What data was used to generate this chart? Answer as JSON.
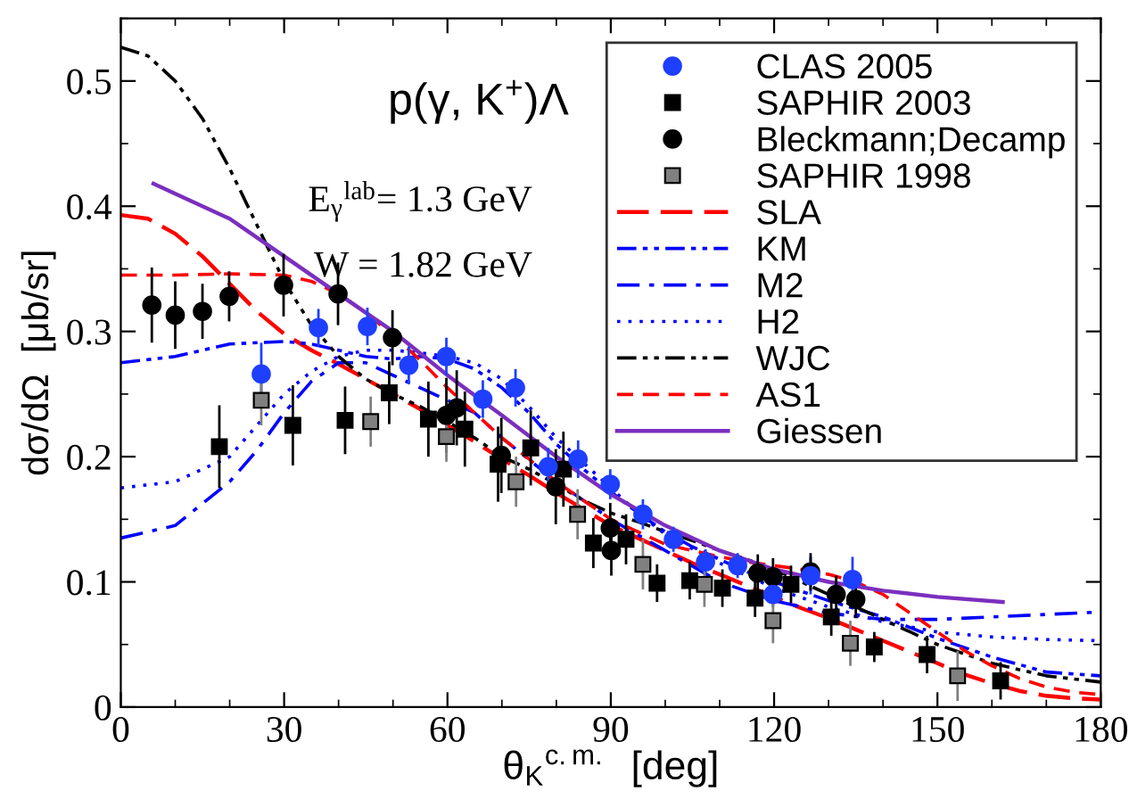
{
  "chart_data": {
    "type": "scatter",
    "title": "p(γ, K$^{+}$)Λ",
    "xlabel": "θ$_{K}$$^{c.m.}$  [deg]",
    "ylabel": "dσ/dΩ  [μb/sr]",
    "annotations": [
      "E$_{γ}$$^{lab}$= 1.3 GeV",
      "W = 1.82 GeV"
    ],
    "xlim": [
      0,
      180
    ],
    "ylim": [
      0,
      0.55
    ],
    "xticks": [
      0,
      30,
      60,
      90,
      120,
      150,
      180
    ],
    "yticks": [
      0,
      0.1,
      0.2,
      0.3,
      0.4,
      0.5
    ],
    "grid": false,
    "legend": "top right",
    "series": [
      {
        "name": "CLAS 2005",
        "marker": "circle",
        "color": "#1f3fff",
        "x": [
          25.8,
          36.3,
          45.3,
          52.9,
          59.8,
          66.5,
          72.5,
          78.5,
          84,
          89.9,
          95.9,
          101.5,
          107.4,
          113.3,
          119.8,
          126.7,
          134.4
        ],
        "values": [
          0.266,
          0.303,
          0.304,
          0.273,
          0.28,
          0.246,
          0.255,
          0.192,
          0.198,
          0.178,
          0.154,
          0.134,
          0.116,
          0.113,
          0.09,
          0.105,
          0.102
        ],
        "errors": [
          0.025,
          0.015,
          0.015,
          0.015,
          0.015,
          0.015,
          0.015,
          0.015,
          0.015,
          0.012,
          0.012,
          0.01,
          0.01,
          0.01,
          0.01,
          0.015,
          0.018
        ]
      },
      {
        "name": "SAPHIR 2003",
        "marker": "square",
        "color": "#000000",
        "x": [
          18.1,
          31.6,
          41.2,
          49.3,
          56.5,
          63.2,
          69.3,
          75.3,
          81.3,
          86.8,
          92.8,
          98.5,
          104.5,
          110.5,
          116.5,
          123.1,
          130.5,
          138.4,
          148.1,
          161.6
        ],
        "values": [
          0.208,
          0.225,
          0.229,
          0.251,
          0.23,
          0.222,
          0.194,
          0.207,
          0.19,
          0.131,
          0.134,
          0.099,
          0.101,
          0.095,
          0.087,
          0.098,
          0.072,
          0.048,
          0.042,
          0.021
        ],
        "errors": [
          0.033,
          0.032,
          0.027,
          0.025,
          0.03,
          0.03,
          0.03,
          0.03,
          0.03,
          0.02,
          0.02,
          0.015,
          0.015,
          0.015,
          0.015,
          0.015,
          0.015,
          0.012,
          0.015,
          0.015
        ]
      },
      {
        "name": "Bleckmann;Decamp",
        "marker": "circle",
        "color": "#000000",
        "x": [
          5.7,
          10,
          15,
          19.9,
          29.9,
          39.9,
          49.9,
          59.8,
          61.7,
          69.9,
          79.9,
          89.9,
          90.1,
          117,
          119.8,
          126.7,
          131.4,
          135
        ],
        "values": [
          0.321,
          0.313,
          0.316,
          0.328,
          0.337,
          0.33,
          0.295,
          0.233,
          0.239,
          0.201,
          0.176,
          0.143,
          0.125,
          0.107,
          0.104,
          0.108,
          0.09,
          0.086
        ],
        "errors": [
          0.03,
          0.027,
          0.022,
          0.02,
          0.025,
          0.025,
          0.022,
          0.03,
          0.03,
          0.03,
          0.03,
          0.02,
          0.02,
          0.015,
          0.015,
          0.015,
          0.015,
          0.015
        ]
      },
      {
        "name": "SAPHIR 1998",
        "marker": "square",
        "color": "#808080",
        "x": [
          25.8,
          45.9,
          59.8,
          72.6,
          83.9,
          95.9,
          107.2,
          119.8,
          134,
          153.7
        ],
        "values": [
          0.245,
          0.228,
          0.216,
          0.18,
          0.154,
          0.114,
          0.098,
          0.069,
          0.051,
          0.025
        ],
        "errors": [
          0.02,
          0.02,
          0.02,
          0.02,
          0.02,
          0.02,
          0.018,
          0.018,
          0.018,
          0.02
        ]
      },
      {
        "name": "SLA",
        "type": "line",
        "line_style": "longdash",
        "color": "#ff0000",
        "x": [
          0,
          5,
          10,
          15,
          20,
          25,
          30,
          35,
          40,
          45,
          50,
          55,
          60,
          65,
          70,
          75,
          80,
          85,
          90,
          95,
          100,
          105,
          110,
          115,
          120,
          125,
          130,
          135,
          140,
          145,
          150,
          155,
          160,
          165,
          170,
          175,
          180
        ],
        "values": [
          0.393,
          0.39,
          0.378,
          0.36,
          0.338,
          0.316,
          0.298,
          0.285,
          0.274,
          0.262,
          0.25,
          0.238,
          0.225,
          0.212,
          0.198,
          0.185,
          0.171,
          0.158,
          0.145,
          0.135,
          0.125,
          0.115,
          0.106,
          0.097,
          0.088,
          0.079,
          0.071,
          0.062,
          0.053,
          0.044,
          0.035,
          0.026,
          0.019,
          0.013,
          0.009,
          0.007,
          0.006
        ]
      },
      {
        "name": "KM",
        "type": "line",
        "line_style": "dashdotdot",
        "color": "#0000ff",
        "x": [
          0,
          10,
          20,
          30,
          35,
          40,
          45,
          50,
          55,
          60,
          65,
          70,
          75,
          80,
          85,
          90,
          95,
          100,
          105,
          110,
          115,
          120,
          130,
          140,
          150,
          160,
          170,
          180
        ],
        "values": [
          0.275,
          0.28,
          0.29,
          0.292,
          0.29,
          0.285,
          0.28,
          0.278,
          0.28,
          0.278,
          0.27,
          0.255,
          0.235,
          0.21,
          0.19,
          0.172,
          0.155,
          0.14,
          0.128,
          0.118,
          0.108,
          0.1,
          0.085,
          0.072,
          0.055,
          0.04,
          0.028,
          0.025
        ]
      },
      {
        "name": "M2",
        "type": "line",
        "line_style": "dashdot",
        "color": "#0000ff",
        "x": [
          0,
          10,
          20,
          25,
          30,
          35,
          40,
          45,
          50,
          55,
          60,
          65,
          70,
          80,
          90,
          100,
          110,
          120,
          130,
          140,
          150,
          160,
          170,
          180
        ],
        "values": [
          0.135,
          0.145,
          0.18,
          0.205,
          0.235,
          0.26,
          0.275,
          0.275,
          0.265,
          0.255,
          0.245,
          0.235,
          0.215,
          0.18,
          0.15,
          0.125,
          0.1,
          0.085,
          0.075,
          0.07,
          0.07,
          0.072,
          0.074,
          0.076
        ]
      },
      {
        "name": "H2",
        "type": "line",
        "line_style": "dotted",
        "color": "#0000ff",
        "x": [
          0,
          10,
          20,
          25,
          30,
          35,
          40,
          45,
          50,
          55,
          60,
          65,
          70,
          75,
          80,
          85,
          90,
          95,
          100,
          110,
          120,
          130,
          140,
          150,
          160,
          170,
          180
        ],
        "values": [
          0.175,
          0.18,
          0.2,
          0.225,
          0.25,
          0.268,
          0.28,
          0.285,
          0.285,
          0.283,
          0.28,
          0.275,
          0.262,
          0.24,
          0.215,
          0.195,
          0.175,
          0.155,
          0.138,
          0.115,
          0.095,
          0.08,
          0.068,
          0.06,
          0.056,
          0.054,
          0.053
        ]
      },
      {
        "name": "WJC",
        "type": "line",
        "line_style": "dashdotdot",
        "color": "#000000",
        "x": [
          0,
          5,
          10,
          15,
          20,
          25,
          30,
          35,
          40,
          45,
          50,
          55,
          60,
          65,
          70,
          75,
          80,
          85,
          90,
          95,
          100,
          105,
          110,
          115,
          120,
          125,
          130,
          135,
          140,
          145,
          150,
          160,
          170,
          180
        ],
        "values": [
          0.527,
          0.52,
          0.5,
          0.47,
          0.43,
          0.385,
          0.34,
          0.305,
          0.28,
          0.262,
          0.25,
          0.24,
          0.228,
          0.215,
          0.2,
          0.19,
          0.178,
          0.165,
          0.155,
          0.148,
          0.14,
          0.133,
          0.125,
          0.118,
          0.11,
          0.1,
          0.09,
          0.08,
          0.07,
          0.06,
          0.05,
          0.035,
          0.025,
          0.02
        ]
      },
      {
        "name": "AS1",
        "type": "line",
        "line_style": "dashed",
        "color": "#ff0000",
        "x": [
          0,
          10,
          20,
          30,
          35,
          40,
          45,
          50,
          55,
          60,
          65,
          70,
          75,
          80,
          85,
          90,
          95,
          100,
          105,
          110,
          115,
          120,
          125,
          130,
          135,
          140,
          145,
          150,
          155,
          160,
          165,
          170,
          175,
          180
        ],
        "values": [
          0.345,
          0.345,
          0.346,
          0.345,
          0.34,
          0.33,
          0.315,
          0.297,
          0.277,
          0.255,
          0.235,
          0.215,
          0.198,
          0.18,
          0.165,
          0.15,
          0.14,
          0.13,
          0.125,
          0.12,
          0.116,
          0.113,
          0.11,
          0.106,
          0.1,
          0.09,
          0.075,
          0.06,
          0.045,
          0.033,
          0.023,
          0.016,
          0.012,
          0.01
        ]
      },
      {
        "name": "Giessen",
        "type": "line",
        "line_style": "solid",
        "color": "#7b2fbe",
        "x": [
          6,
          10,
          20,
          30,
          40,
          50,
          60,
          70,
          80,
          90,
          100,
          110,
          120,
          130,
          140,
          150,
          162
        ],
        "values": [
          0.418,
          0.41,
          0.39,
          0.36,
          0.33,
          0.3,
          0.265,
          0.233,
          0.2,
          0.17,
          0.145,
          0.125,
          0.11,
          0.1,
          0.093,
          0.088,
          0.084
        ]
      }
    ]
  }
}
